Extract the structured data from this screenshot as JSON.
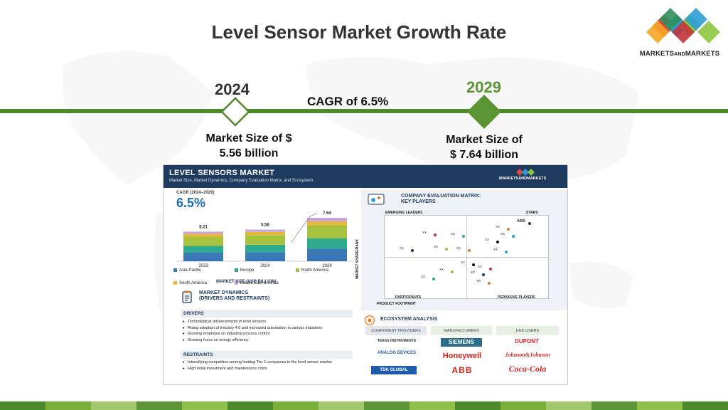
{
  "slide": {
    "title": "Level Sensor Market Growth Rate",
    "logo_text_a": "MARKETS",
    "logo_text_b": "AND",
    "logo_text_c": "MARKETS",
    "year_start": "2024",
    "year_end": "2029",
    "cagr_text": "CAGR of 6.5%",
    "size_start_l1": "Market Size of $",
    "size_start_l2": "5.56 billion",
    "size_end_l1": "Market Size of",
    "size_end_l2": "$ 7.64 billion",
    "colors": {
      "accent_green": "#4d8a2c",
      "light_green": "#7ab03a",
      "title": "#333333"
    }
  },
  "infographic": {
    "title": "LEVEL SENSORS MARKET",
    "subtitle": "Market Size, Market Dynamics, Company Evaluation Matrix, and Ecosystem",
    "logo": "MARKETSANDMARKETS",
    "cagr_label": "CAGR (2024–2029)",
    "cagr_value": "6.5%",
    "market_size_label": "MARKET SIZE (USD BILLION)",
    "dynamics_title_l1": "MARKET DYNAMICS",
    "dynamics_title_l2": "(DRIVERS AND RESTRAINTS)",
    "drivers_label": "DRIVERS",
    "drivers": [
      "Technological advancements in level sensors",
      "Rising adoption of Industry 4.0 and increased automation in various industries",
      "Growing emphasis on industrial process control",
      "Growing focus on energy efficiency"
    ],
    "restraints_label": "RESTRAINTS",
    "restraints": [
      "Intensifying competition among leading Tier 1 companies in the level sensor market",
      "High initial investment and maintenance costs"
    ],
    "matrix_title_l1": "COMPANY EVALUATION MATRIX:",
    "matrix_title_l2": "KEY PLAYERS",
    "quadrants": {
      "tl": "EMERGING LEADERS",
      "tr": "STARS",
      "bl": "PARTICIPANTS",
      "br": "PERVASIVE PLAYERS"
    },
    "axis_x": "PRODUCT FOOTPRINT",
    "axis_y": "MARKET SHARE/RANK",
    "matrix_points": [
      "ABB",
      "XX",
      "XX",
      "XX",
      "XX",
      "XX",
      "XX",
      "XX",
      "XX",
      "XX",
      "XX",
      "XX",
      "XX",
      "XX",
      "XX",
      "XX"
    ],
    "ecosystem_title": "ECOSYSTEM ANALYSIS",
    "eco_cols": [
      "COMPONENT PROVIDERS",
      "MANUFACTURERS",
      "END USERS"
    ],
    "eco_brands": {
      "ti": "TEXAS INSTRUMENTS",
      "adi": "ANALOG DEVICES",
      "tdk": "TDK GLOBAL",
      "siemens": "SIEMENS",
      "honeywell": "Honeywell",
      "abb": "ABB",
      "dupont": "DUPONT",
      "jnj": "Johnson&Johnson",
      "coke": "Coca-Cola"
    }
  },
  "chart_data": {
    "type": "bar",
    "stacked": true,
    "categories": [
      "2023",
      "2024",
      "2029"
    ],
    "totals": [
      5.21,
      5.56,
      7.64
    ],
    "series": [
      {
        "name": "Asia Pacific",
        "values": [
          1.5,
          1.6,
          2.2
        ],
        "color": "#3b78b7"
      },
      {
        "name": "Europe",
        "values": [
          1.2,
          1.3,
          1.8
        ],
        "color": "#2eab8e"
      },
      {
        "name": "North America",
        "values": [
          1.6,
          1.7,
          2.3
        ],
        "color": "#a7c23d"
      },
      {
        "name": "South America",
        "values": [
          0.5,
          0.55,
          0.7
        ],
        "color": "#e8b83a"
      },
      {
        "name": "Middle East & Africa",
        "values": [
          0.41,
          0.41,
          0.64
        ],
        "color": "#c9a8d8"
      }
    ],
    "ylim": [
      0,
      8
    ]
  }
}
